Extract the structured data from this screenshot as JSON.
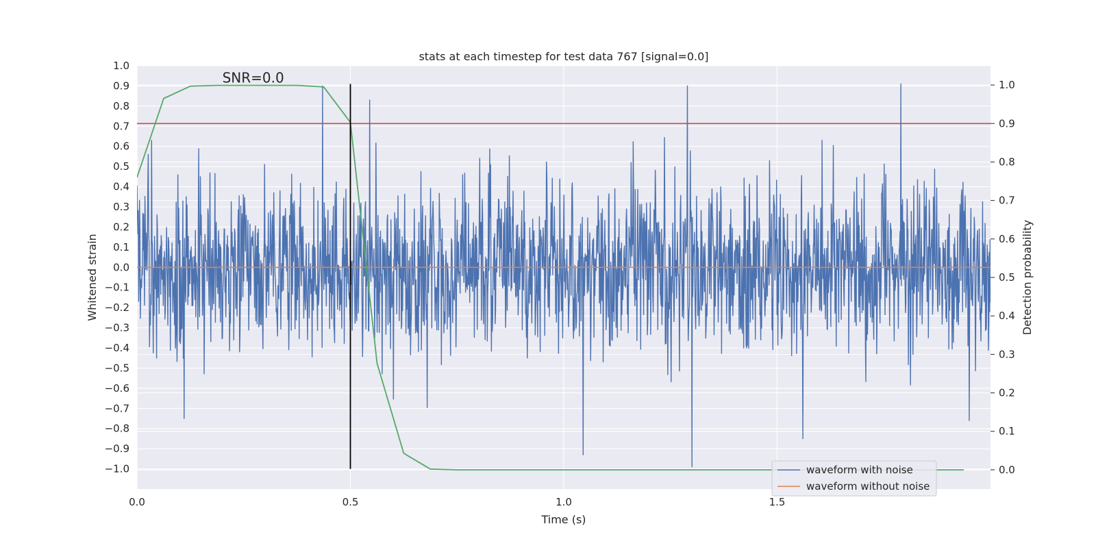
{
  "chart_data": {
    "type": "line",
    "title": "stats at each timestep for test data 767 [signal=0.0]",
    "xlabel": "Time (s)",
    "ylabel_left": "Whitened strain",
    "ylabel_right": "Detection probability",
    "xlim": [
      0.0,
      2.0
    ],
    "ylim_left": [
      -1.1,
      1.0
    ],
    "ylim_right": [
      -0.05,
      1.05
    ],
    "x_ticks": [
      0.0,
      0.5,
      1.0,
      1.5
    ],
    "x_tick_labels": [
      "0.0",
      "0.5",
      "1.0",
      "1.5"
    ],
    "y_left_ticks": [
      -1.0,
      -0.9,
      -0.8,
      -0.7,
      -0.6,
      -0.5,
      -0.4,
      -0.3,
      -0.2,
      -0.1,
      0.0,
      0.1,
      0.2,
      0.3,
      0.4,
      0.5,
      0.6,
      0.7,
      0.8,
      0.9,
      1.0
    ],
    "y_left_tick_labels": [
      "−1.0",
      "−0.9",
      "−0.8",
      "−0.7",
      "−0.6",
      "−0.5",
      "−0.4",
      "−0.3",
      "−0.2",
      "−0.1",
      "0.0",
      "0.1",
      "0.2",
      "0.3",
      "0.4",
      "0.5",
      "0.6",
      "0.7",
      "0.8",
      "0.9",
      "1.0"
    ],
    "y_right_ticks": [
      0.0,
      0.1,
      0.2,
      0.3,
      0.4,
      0.5,
      0.6,
      0.7,
      0.8,
      0.9,
      1.0
    ],
    "y_right_tick_labels": [
      "0.0",
      "0.1",
      "0.2",
      "0.3",
      "0.4",
      "0.5",
      "0.6",
      "0.7",
      "0.8",
      "0.9",
      "1.0"
    ],
    "grid": true,
    "annotation": {
      "text": "SNR=0.0",
      "x": 0.2,
      "y": 0.93
    },
    "threshold": {
      "value": 0.9,
      "axis": "right",
      "color": "#c44e52"
    },
    "vline": {
      "x": 0.5,
      "ymin": -1.0,
      "ymax": 0.91,
      "color": "#000000"
    },
    "noise_seed": 767,
    "series": [
      {
        "name": "waveform with noise",
        "type": "noise-trace",
        "axis": "left",
        "color": "#4c72b0",
        "samples": 2048,
        "x_range": [
          0.0,
          2.0
        ],
        "std": 0.26,
        "peaks": [
          {
            "x": 0.435,
            "y": 0.9
          },
          {
            "x": 0.545,
            "y": 0.83
          },
          {
            "x": 1.29,
            "y": 0.9
          },
          {
            "x": 1.79,
            "y": 0.91
          },
          {
            "x": 1.3,
            "y": -0.99
          },
          {
            "x": 1.045,
            "y": -0.93
          },
          {
            "x": 1.56,
            "y": -0.85
          },
          {
            "x": 1.95,
            "y": -0.76
          },
          {
            "x": 0.11,
            "y": -0.75
          }
        ]
      },
      {
        "name": "waveform without noise",
        "type": "line",
        "axis": "left",
        "color": "#dd8452",
        "x": [
          0.0,
          2.0
        ],
        "y": [
          0.0,
          0.0
        ]
      },
      {
        "name": "detection probability",
        "type": "line",
        "axis": "right",
        "color": "#55a868",
        "x": [
          0.0,
          0.0625,
          0.125,
          0.1875,
          0.25,
          0.3125,
          0.375,
          0.4375,
          0.5,
          0.5625,
          0.625,
          0.6875,
          0.75,
          0.8125,
          0.875,
          0.9375,
          1.0,
          1.0625,
          1.125,
          1.1875,
          1.25,
          1.3125,
          1.375,
          1.4375,
          1.5,
          1.5625,
          1.625,
          1.6875,
          1.75,
          1.8125,
          1.875,
          1.9375
        ],
        "y": [
          0.76,
          0.965,
          0.997,
          0.999,
          0.999,
          0.999,
          0.999,
          0.995,
          0.903,
          0.277,
          0.043,
          0.002,
          0.0,
          0.0,
          0.0,
          0.0,
          0.0,
          0.0,
          0.0,
          0.0,
          0.0,
          0.0,
          0.0,
          0.0,
          0.0,
          0.0,
          0.0,
          0.0,
          0.0,
          0.0,
          0.0,
          0.0
        ]
      }
    ],
    "legend": {
      "placement": "lower-right",
      "entries": [
        {
          "label": "waveform with noise",
          "color": "#4c72b0"
        },
        {
          "label": "waveform without noise",
          "color": "#dd8452"
        }
      ]
    }
  }
}
